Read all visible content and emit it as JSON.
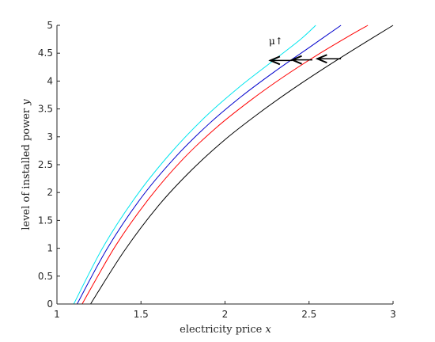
{
  "chart_data": {
    "type": "line",
    "title": "",
    "xlabel": "electricity price",
    "xlabel_var": "x",
    "ylabel": "level of installed power",
    "ylabel_var": "y",
    "xlim": [
      1,
      3
    ],
    "ylim": [
      0,
      5
    ],
    "xticks": [
      "1",
      "1.5",
      "2",
      "2.5",
      "3"
    ],
    "yticks": [
      "0",
      "0.5",
      "1",
      "1.5",
      "2",
      "2.5",
      "3",
      "3.5",
      "4",
      "4.5",
      "5"
    ],
    "grid": false,
    "legend": "none",
    "annotation": "μ↑",
    "series": [
      {
        "color": "#000000",
        "x": [
          1.2,
          1.4,
          1.6,
          1.8,
          2.0,
          2.2,
          2.4,
          2.6,
          2.8,
          3.0
        ],
        "y": [
          0.0,
          0.95,
          1.75,
          2.4,
          2.95,
          3.42,
          3.85,
          4.25,
          4.63,
          5.0
        ]
      },
      {
        "color": "#ff0000",
        "x": [
          1.15,
          1.35,
          1.55,
          1.75,
          1.95,
          2.15,
          2.35,
          2.55,
          2.75,
          2.85
        ],
        "y": [
          0.0,
          1.05,
          1.9,
          2.6,
          3.17,
          3.65,
          4.08,
          4.47,
          4.83,
          5.0
        ]
      },
      {
        "color": "#0000cc",
        "x": [
          1.12,
          1.3,
          1.5,
          1.7,
          1.9,
          2.1,
          2.3,
          2.5,
          2.69
        ],
        "y": [
          0.0,
          1.0,
          1.9,
          2.62,
          3.22,
          3.73,
          4.18,
          4.6,
          5.0
        ]
      },
      {
        "color": "#00e5ee",
        "x": [
          1.1,
          1.28,
          1.48,
          1.68,
          1.88,
          2.08,
          2.28,
          2.45,
          2.54
        ],
        "y": [
          0.0,
          1.05,
          1.97,
          2.72,
          3.35,
          3.88,
          4.35,
          4.75,
          5.0
        ]
      }
    ],
    "arrows": [
      {
        "from": [
          2.69,
          4.4
        ],
        "to": [
          2.55,
          4.4
        ]
      },
      {
        "from": [
          2.52,
          4.38
        ],
        "to": [
          2.4,
          4.38
        ]
      },
      {
        "from": [
          2.4,
          4.37
        ],
        "to": [
          2.27,
          4.37
        ]
      }
    ]
  }
}
